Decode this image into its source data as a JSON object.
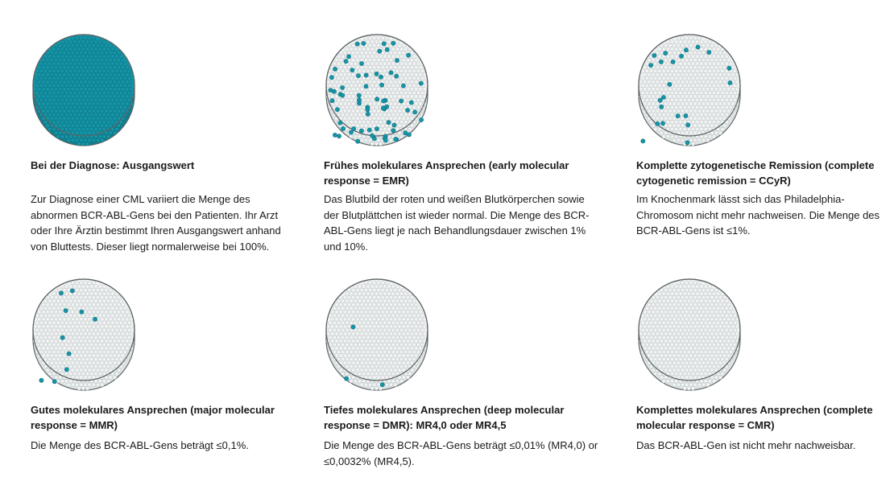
{
  "colors": {
    "positive": "#1596a8",
    "positive_edge": "#0d6f7e",
    "cell": "#f2f4f4",
    "cell_edge": "#b9c1c3",
    "rim": "#5d6466"
  },
  "stages": [
    {
      "title": "Bei der Diagnose: Ausgangswert",
      "body": "Zur Diagnose einer CML variiert die Menge des abnormen BCR-ABL-Gens bei den Patienten. Ihr Arzt oder Ihre Ärztin bestimmt Ihren Ausgangswert anhand von Bluttests. Dieser liegt normalerweise bei 100%.",
      "positive_fraction": 1.0,
      "positive_dots": 0
    },
    {
      "title": "Frühes molekulares Ansprechen (early molecular response = EMR)",
      "body": "Das Blutbild der roten und weißen Blutkörperchen sowie der Blutplättchen ist wieder normal. Die Menge des BCR-ABL-Gens liegt je nach Behandlungsdauer zwischen 1% und 10%.",
      "positive_fraction": 0,
      "positive_dots": 70
    },
    {
      "title": "Komplette zytogenetische Remission (complete cytogenetic remission = CCyR)",
      "body": "Im Knochenmark lässt sich das Philadelphia-Chromosom nicht mehr nachweisen. Die Menge des BCR-ABL-Gens ist ≤1%.",
      "positive_fraction": 0,
      "positive_dots": 22
    },
    {
      "title": "Gutes molekulares Ansprechen (major molecular response = MMR)",
      "body": "Die Menge des BCR-ABL-Gens beträgt ≤0,1%.",
      "positive_fraction": 0,
      "positive_dots": 10
    },
    {
      "title": "Tiefes molekulares Ansprechen (deep molecular response = DMR): MR4,0 oder MR4,5",
      "body": "Die Menge des BCR-ABL-Gens beträgt ≤0,01% (MR4,0) or ≤0,0032% (MR4,5).",
      "positive_fraction": 0,
      "positive_dots": 3
    },
    {
      "title": "Komplettes molekulares Ansprechen (complete molecular response = CMR)",
      "body": "Das BCR-ABL-Gen ist nicht mehr nachweisbar.",
      "positive_fraction": 0,
      "positive_dots": 0
    }
  ]
}
